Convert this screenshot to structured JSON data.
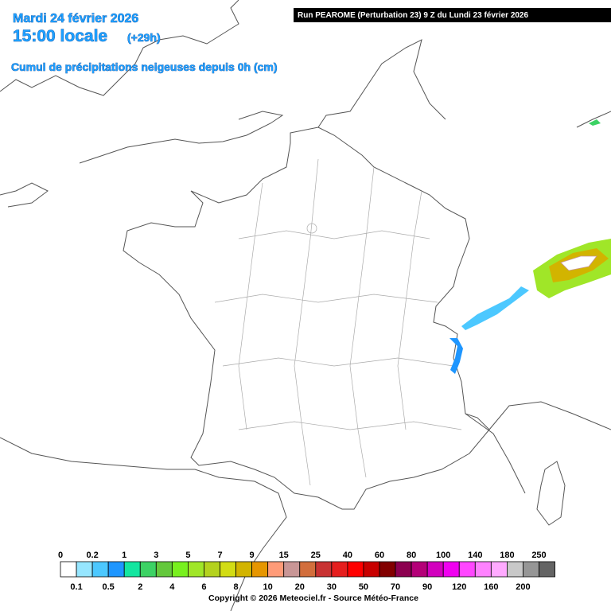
{
  "header": {
    "date": "Mardi 24 février 2026",
    "time": "15:00 locale",
    "lead": "(+29h)",
    "subtitle": "Cumul de précipitations neigeuses depuis 0h (cm)",
    "run": "Run PEAROME (Perturbation 23) 9 Z du Lundi 23 février 2026"
  },
  "legend": {
    "levels": [
      0,
      0.1,
      0.2,
      0.5,
      1,
      2,
      3,
      4,
      5,
      6,
      7,
      8,
      9,
      10,
      15,
      20,
      25,
      30,
      40,
      50,
      60,
      70,
      80,
      90,
      100,
      120,
      140,
      160,
      180,
      200,
      250
    ],
    "colors": [
      "#ffffff",
      "#96e6ff",
      "#4cc8ff",
      "#1e96ff",
      "#14e6a0",
      "#3cd264",
      "#64c83c",
      "#78f01e",
      "#a0e628",
      "#b4d21e",
      "#d2dc14",
      "#d2b400",
      "#e69600",
      "#ff9b78",
      "#c89696",
      "#d26e3c",
      "#c83232",
      "#e61e1e",
      "#ff0000",
      "#c80000",
      "#820000",
      "#8c0050",
      "#b40078",
      "#d200be",
      "#f000f0",
      "#ff46ff",
      "#ff82ff",
      "#ffaaff",
      "#c8c8c8",
      "#969696",
      "#646464"
    ]
  },
  "footer": {
    "copyright": "Copyright © 2026 Meteociel.fr - Source Météo-France"
  }
}
